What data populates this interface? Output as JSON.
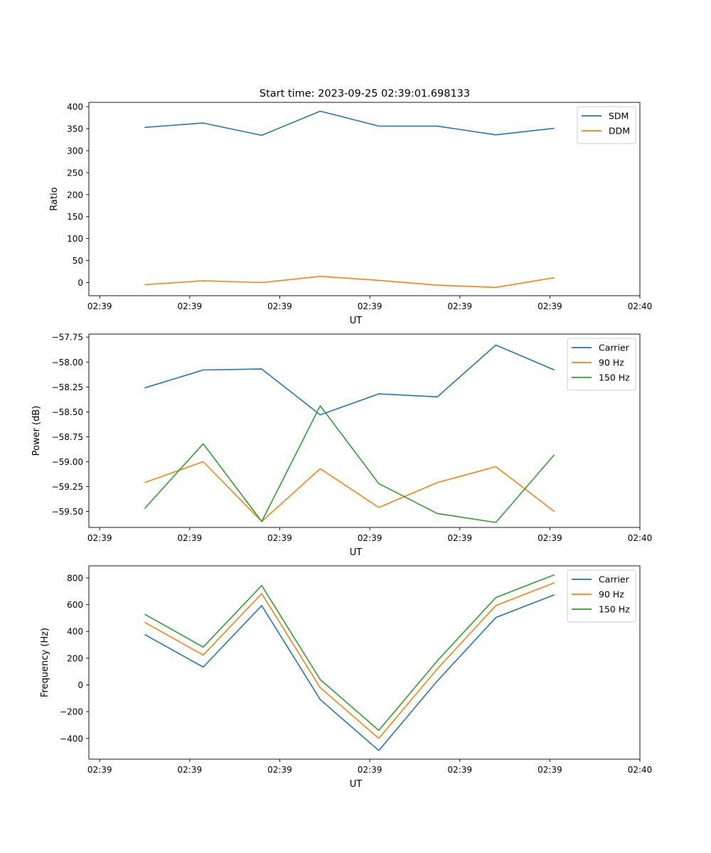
{
  "figure_title": "Start time: 2023-09-25 02:39:01.698133",
  "chart_data": [
    {
      "type": "line",
      "id": "ratio",
      "title": "Start time: 2023-09-25 02:39:01.698133",
      "xlabel": "UT",
      "ylabel": "Ratio",
      "xlim": [
        -0.12,
        6.0
      ],
      "ylim": [
        -30,
        410
      ],
      "xticks": [
        0,
        1,
        2,
        3,
        4,
        5,
        6
      ],
      "xticklabels": [
        "02:39",
        "02:39",
        "02:39",
        "02:39",
        "02:39",
        "02:39",
        "02:40"
      ],
      "yticks": [
        0,
        50,
        100,
        150,
        200,
        250,
        300,
        350,
        400
      ],
      "yticklabels": [
        "0",
        "50",
        "100",
        "150",
        "200",
        "250",
        "300",
        "350",
        "400"
      ],
      "legend_position": "top-right",
      "x": [
        0.5,
        1.15,
        1.8,
        2.45,
        3.1,
        3.75,
        4.4,
        5.05
      ],
      "series": [
        {
          "name": "SDM",
          "color": "#1f77b4",
          "values": [
            353,
            363,
            335,
            390,
            356,
            356,
            336,
            351
          ]
        },
        {
          "name": "DDM",
          "color": "#ff7f0e",
          "values": [
            -5,
            4,
            0,
            14,
            5,
            -6,
            -11,
            11
          ]
        }
      ]
    },
    {
      "type": "line",
      "id": "power",
      "title": "",
      "xlabel": "UT",
      "ylabel": "Power (dB)",
      "xlim": [
        -0.12,
        6.0
      ],
      "ylim": [
        -59.66,
        -57.72
      ],
      "xticks": [
        0,
        1,
        2,
        3,
        4,
        5,
        6
      ],
      "xticklabels": [
        "02:39",
        "02:39",
        "02:39",
        "02:39",
        "02:39",
        "02:39",
        "02:40"
      ],
      "yticks": [
        -59.5,
        -59.25,
        -59.0,
        -58.75,
        -58.5,
        -58.25,
        -58.0,
        -57.75
      ],
      "yticklabels": [
        "−59.50",
        "−59.25",
        "−59.00",
        "−58.75",
        "−58.50",
        "−58.25",
        "−58.00",
        "−57.75"
      ],
      "legend_position": "top-right",
      "x": [
        0.5,
        1.15,
        1.8,
        2.45,
        3.1,
        3.75,
        4.4,
        5.05
      ],
      "series": [
        {
          "name": "Carrier",
          "color": "#1f77b4",
          "values": [
            -58.26,
            -58.08,
            -58.07,
            -58.53,
            -58.32,
            -58.35,
            -57.83,
            -58.08
          ]
        },
        {
          "name": "90 Hz",
          "color": "#ff7f0e",
          "values": [
            -59.21,
            -59.0,
            -59.6,
            -59.07,
            -59.46,
            -59.21,
            -59.05,
            -59.5
          ]
        },
        {
          "name": "150 Hz",
          "color": "#2ca02c",
          "values": [
            -59.47,
            -58.82,
            -59.6,
            -58.44,
            -59.22,
            -59.52,
            -59.61,
            -58.93
          ]
        }
      ]
    },
    {
      "type": "line",
      "id": "frequency",
      "title": "",
      "xlabel": "UT",
      "ylabel": "Frequency (Hz)",
      "xlim": [
        -0.12,
        6.0
      ],
      "ylim": [
        -555,
        890
      ],
      "xticks": [
        0,
        1,
        2,
        3,
        4,
        5,
        6
      ],
      "xticklabels": [
        "02:39",
        "02:39",
        "02:39",
        "02:39",
        "02:39",
        "02:39",
        "02:40"
      ],
      "yticks": [
        -400,
        -200,
        0,
        200,
        400,
        600,
        800
      ],
      "yticklabels": [
        "−400",
        "−200",
        "0",
        "200",
        "400",
        "600",
        "800"
      ],
      "legend_position": "top-right",
      "x": [
        0.5,
        1.15,
        1.8,
        2.45,
        3.1,
        3.75,
        4.4,
        5.05
      ],
      "series": [
        {
          "name": "Carrier",
          "color": "#1f77b4",
          "values": [
            377,
            133,
            593,
            -110,
            -490,
            30,
            503,
            673
          ]
        },
        {
          "name": "90 Hz",
          "color": "#ff7f0e",
          "values": [
            468,
            223,
            683,
            -20,
            -400,
            120,
            593,
            763
          ]
        },
        {
          "name": "150 Hz",
          "color": "#2ca02c",
          "values": [
            528,
            283,
            743,
            40,
            -340,
            180,
            653,
            823
          ]
        }
      ]
    }
  ]
}
